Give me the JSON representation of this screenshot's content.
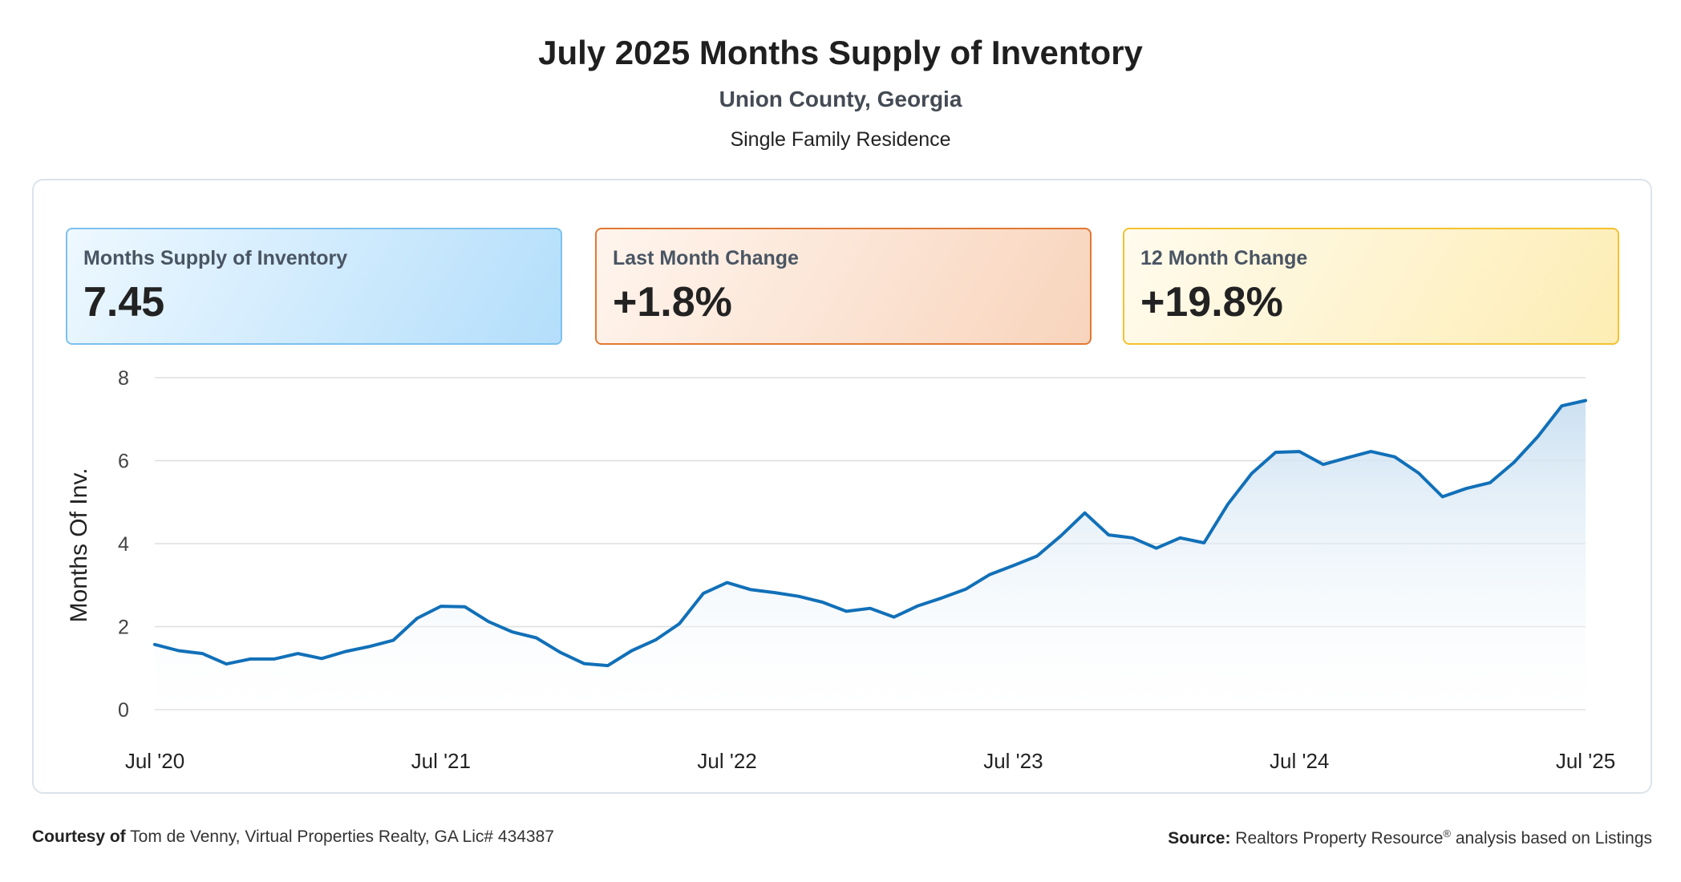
{
  "header": {
    "title": "July 2025 Months Supply of Inventory",
    "subtitle": "Union County, Georgia",
    "property_type": "Single Family Residence"
  },
  "cards": [
    {
      "label": "Months Supply of Inventory",
      "value": "7.45"
    },
    {
      "label": "Last Month Change",
      "value": "+1.8%"
    },
    {
      "label": "12 Month Change",
      "value": "+19.8%"
    }
  ],
  "footer": {
    "courtesy_label": "Courtesy of",
    "courtesy_text": "Tom de Venny, Virtual Properties Realty, GA Lic# 434387",
    "source_label": "Source:",
    "source_text_1": "Realtors Property Resource",
    "source_sup": "®",
    "source_text_2": "analysis based on Listings"
  },
  "colors": {
    "line": "#1170b8",
    "area_top": "#c9dff1",
    "grid": "#dedede"
  },
  "chart_data": {
    "type": "area",
    "ylabel": "Months Of Inv.",
    "xlabel": "",
    "ylim": [
      0,
      8
    ],
    "yticks": [
      0,
      2,
      4,
      6,
      8
    ],
    "xtick_labels": [
      "Jul '20",
      "Jul '21",
      "Jul '22",
      "Jul '23",
      "Jul '24",
      "Jul '25"
    ],
    "grid": true,
    "legend": "none",
    "x": [
      "2020-07",
      "2020-08",
      "2020-09",
      "2020-10",
      "2020-11",
      "2020-12",
      "2021-01",
      "2021-02",
      "2021-03",
      "2021-04",
      "2021-05",
      "2021-06",
      "2021-07",
      "2021-08",
      "2021-09",
      "2021-10",
      "2021-11",
      "2021-12",
      "2022-01",
      "2022-02",
      "2022-03",
      "2022-04",
      "2022-05",
      "2022-06",
      "2022-07",
      "2022-08",
      "2022-09",
      "2022-10",
      "2022-11",
      "2022-12",
      "2023-01",
      "2023-02",
      "2023-03",
      "2023-04",
      "2023-05",
      "2023-06",
      "2023-07",
      "2023-08",
      "2023-09",
      "2023-10",
      "2023-11",
      "2023-12",
      "2024-01",
      "2024-02",
      "2024-03",
      "2024-04",
      "2024-05",
      "2024-06",
      "2024-07",
      "2024-08",
      "2024-09",
      "2024-10",
      "2024-11",
      "2024-12",
      "2025-01",
      "2025-02",
      "2025-03",
      "2025-04",
      "2025-05",
      "2025-06",
      "2025-07"
    ],
    "series": [
      {
        "values": [
          1.57,
          1.42,
          1.35,
          1.1,
          1.22,
          1.22,
          1.35,
          1.23,
          1.4,
          1.52,
          1.67,
          2.2,
          2.49,
          2.48,
          2.12,
          1.87,
          1.73,
          1.38,
          1.11,
          1.06,
          1.42,
          1.68,
          2.07,
          2.8,
          3.06,
          2.89,
          2.82,
          2.73,
          2.59,
          2.37,
          2.44,
          2.23,
          2.5,
          2.69,
          2.9,
          3.25,
          3.47,
          3.7,
          4.19,
          4.74,
          4.21,
          4.14,
          3.89,
          4.14,
          4.02,
          4.95,
          5.69,
          6.2,
          6.22,
          5.91,
          6.07,
          6.22,
          6.09,
          5.7,
          5.13,
          5.33,
          5.47,
          5.96,
          6.58,
          7.32,
          7.45
        ]
      }
    ]
  }
}
